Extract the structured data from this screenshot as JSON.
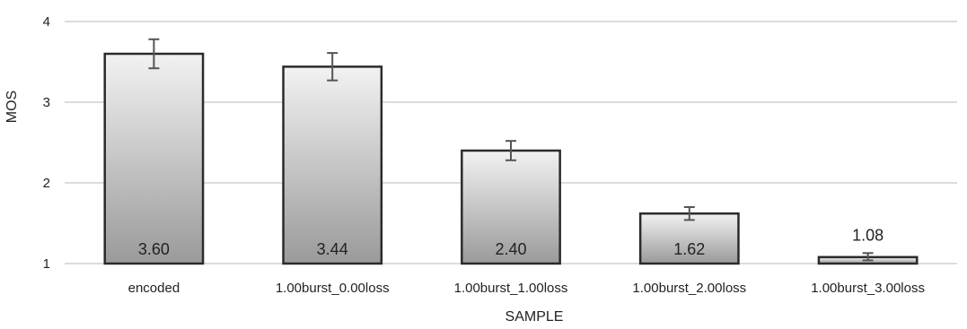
{
  "chart_data": {
    "type": "bar",
    "title": "",
    "xlabel": "SAMPLE",
    "ylabel": "MOS",
    "ylim": [
      1,
      4
    ],
    "yticks": [
      "1",
      "2",
      "3",
      "4"
    ],
    "grid": true,
    "categories": [
      "encoded",
      "1.00burst_0.00loss",
      "1.00burst_1.00loss",
      "1.00burst_2.00loss",
      "1.00burst_3.00loss"
    ],
    "values": [
      3.6,
      3.44,
      2.4,
      1.62,
      1.08
    ],
    "value_labels": [
      "3.60",
      "3.44",
      "2.40",
      "1.62",
      "1.08"
    ],
    "error_low": [
      3.42,
      3.27,
      2.28,
      1.54,
      1.04
    ],
    "error_high": [
      3.78,
      3.61,
      2.52,
      1.7,
      1.13
    ],
    "colors": {
      "bar_top": "#f2f2f2",
      "bar_bottom": "#9a9a9a",
      "bar_stroke": "#2b2b2b",
      "grid": "#c8c8c8",
      "error_bar": "#555555"
    }
  }
}
